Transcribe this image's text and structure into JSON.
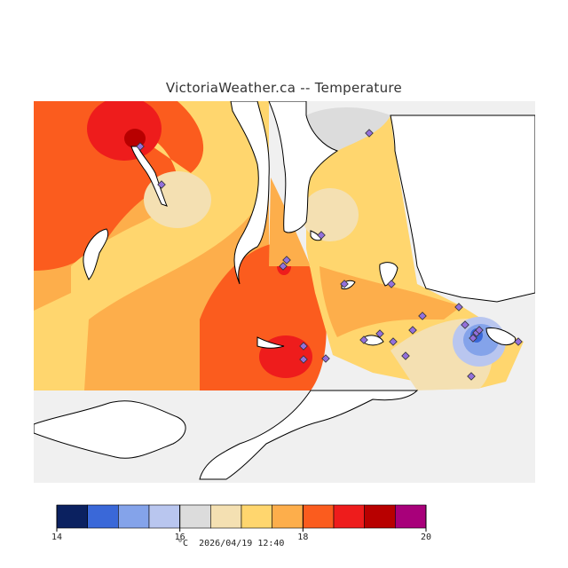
{
  "title": "VictoriaWeather.ca -- Temperature",
  "legend": {
    "unit": "°C",
    "ticks": [
      "14",
      "16",
      "18",
      "20"
    ],
    "bins": [
      {
        "min": 14.0,
        "max": 14.5,
        "color": "#0b2160"
      },
      {
        "min": 14.5,
        "max": 15.0,
        "color": "#3a68d8"
      },
      {
        "min": 15.0,
        "max": 15.5,
        "color": "#84a3ea"
      },
      {
        "min": 15.5,
        "max": 16.0,
        "color": "#b9c6ef"
      },
      {
        "min": 16.0,
        "max": 16.5,
        "color": "#dcdcdc"
      },
      {
        "min": 16.5,
        "max": 17.0,
        "color": "#f4e0b2"
      },
      {
        "min": 17.0,
        "max": 17.5,
        "color": "#ffd66e"
      },
      {
        "min": 17.5,
        "max": 18.0,
        "color": "#fdae4b"
      },
      {
        "min": 18.0,
        "max": 18.5,
        "color": "#fb5c1e"
      },
      {
        "min": 18.5,
        "max": 19.0,
        "color": "#ee1c1c"
      },
      {
        "min": 19.0,
        "max": 19.5,
        "color": "#b80000"
      },
      {
        "min": 19.5,
        "max": 20.0,
        "color": "#a8007a"
      }
    ]
  },
  "timestamp": "2026/04/19 12:40",
  "colors": {
    "land_outside": "#f0f0f0",
    "station": "#9370db",
    "coastline": "#000000",
    "water": "#ffffff"
  },
  "stations_count_label": ""
}
